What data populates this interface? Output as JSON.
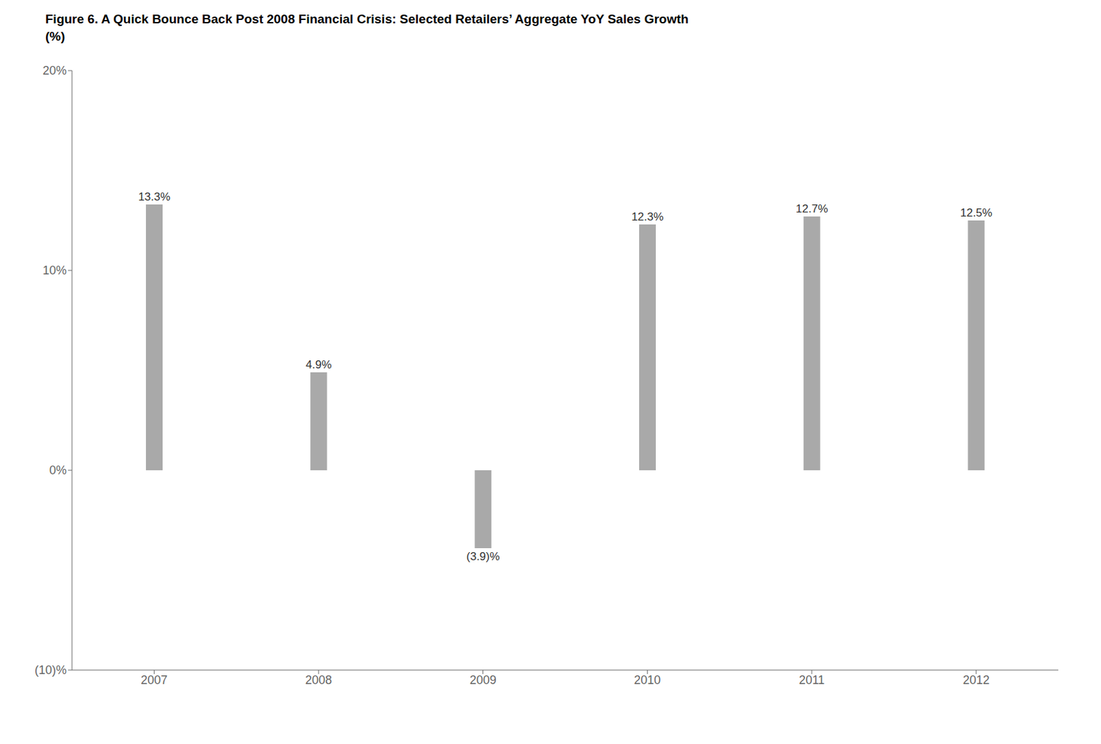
{
  "chart_data": {
    "type": "bar",
    "title": "Figure 6. A Quick Bounce Back Post 2008 Financial Crisis: Selected Retailers’ Aggregate YoY Sales Growth",
    "subtitle": "(%)",
    "categories": [
      "2007",
      "2008",
      "2009",
      "2010",
      "2011",
      "2012"
    ],
    "values": [
      13.3,
      4.9,
      -3.9,
      12.3,
      12.7,
      12.5
    ],
    "value_labels": [
      "13.3%",
      "4.9%",
      "(3.9)%",
      "12.3%",
      "12.7%",
      "12.5%"
    ],
    "data_labels": true,
    "color": "#a9a9a9",
    "ylim": [
      -10,
      20
    ],
    "yticks": [
      {
        "value": -10,
        "label": "(10)%"
      },
      {
        "value": 0,
        "label": "0%"
      },
      {
        "value": 10,
        "label": "10%"
      },
      {
        "value": 20,
        "label": "20%"
      }
    ],
    "grid": false
  }
}
